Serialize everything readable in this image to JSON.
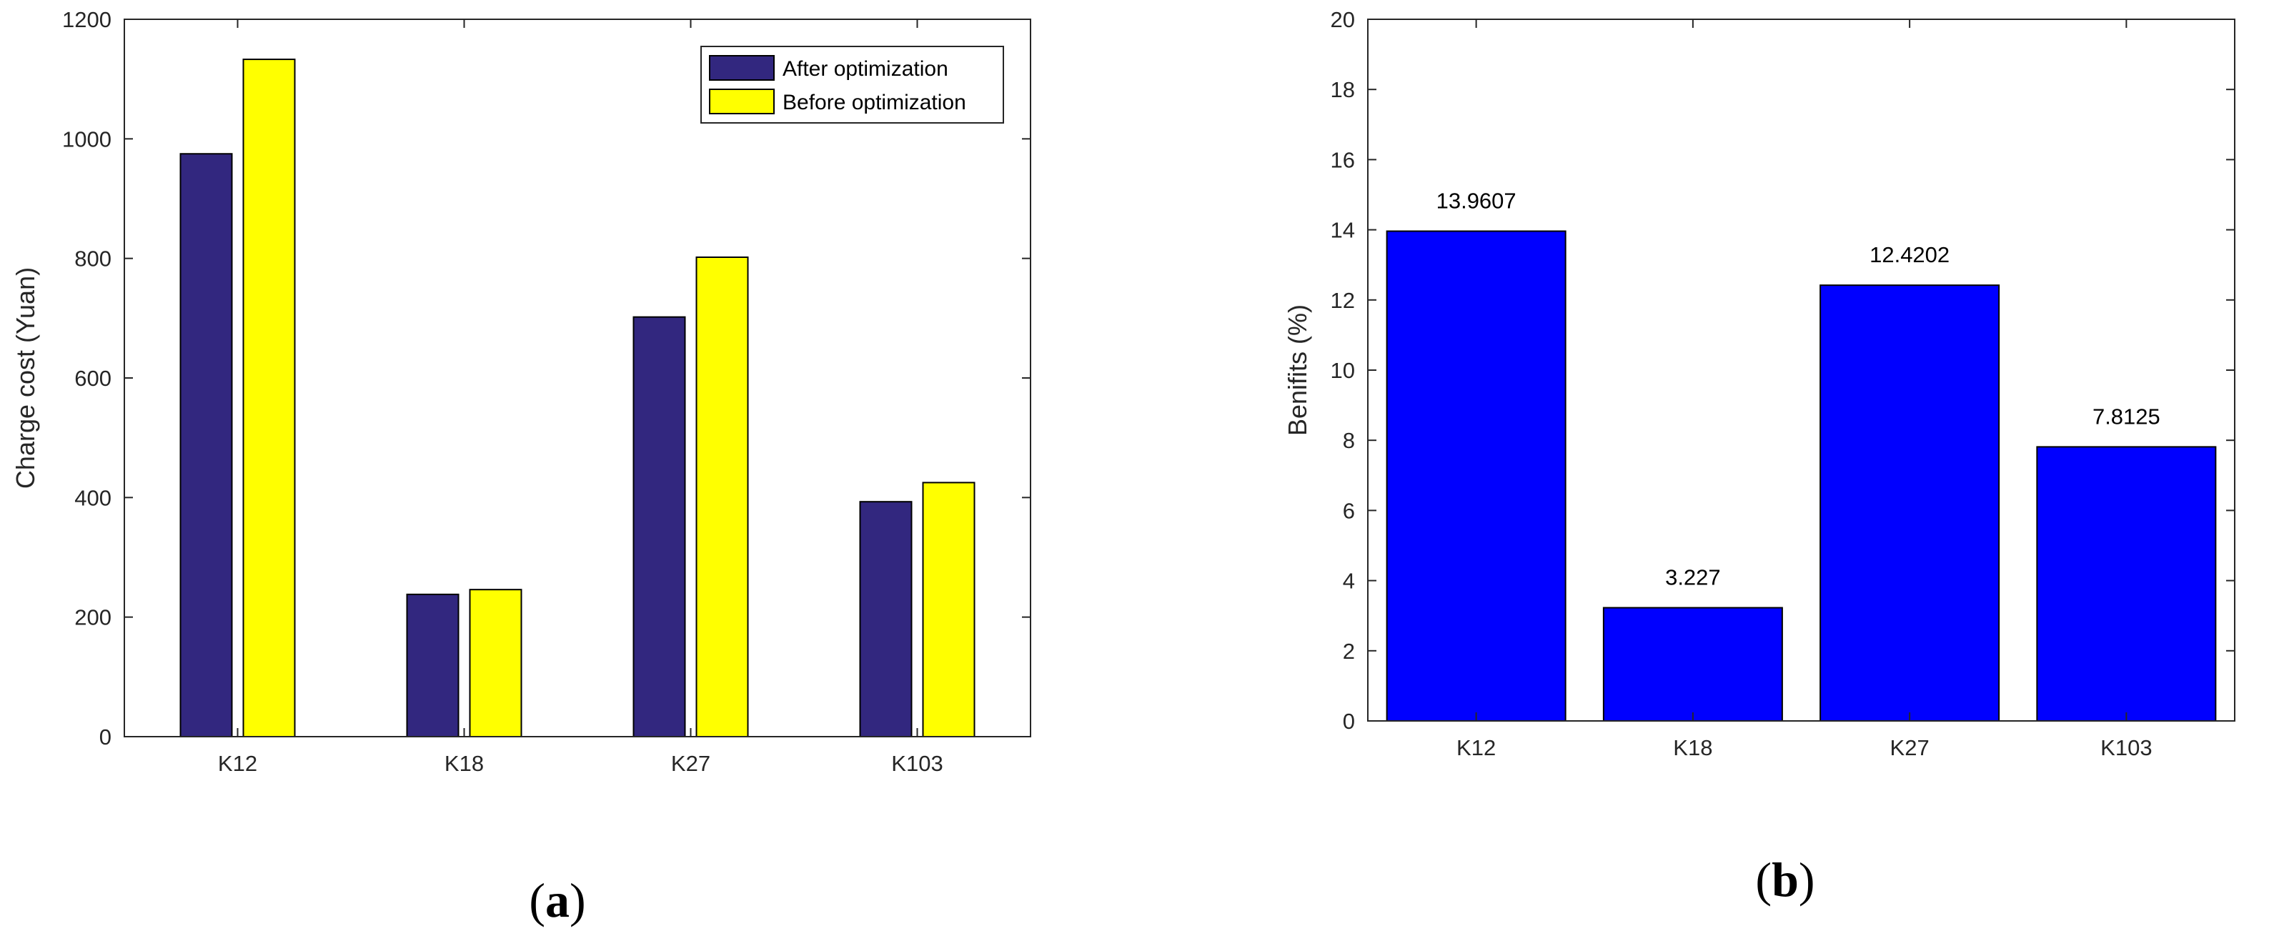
{
  "chart_data": [
    {
      "panel": "a",
      "type": "bar",
      "categories": [
        "K12",
        "K18",
        "K27",
        "K103"
      ],
      "series": [
        {
          "name": "After optimization",
          "values": [
            975,
            238,
            702,
            393
          ],
          "color": "#32277F"
        },
        {
          "name": "Before optimization",
          "values": [
            1133,
            246,
            802,
            425
          ],
          "color": "#FFFF00"
        }
      ],
      "ylabel": "Charge cost (Yuan)",
      "xlabel": "",
      "ylim": [
        0,
        1200
      ],
      "yticks": [
        0,
        200,
        400,
        600,
        800,
        1000,
        1200
      ],
      "legend": "top-right",
      "grid": false
    },
    {
      "panel": "b",
      "type": "bar",
      "categories": [
        "K12",
        "K18",
        "K27",
        "K103"
      ],
      "values": [
        13.9607,
        3.227,
        12.4202,
        7.8125
      ],
      "data_labels": [
        "13.9607",
        "3.227",
        "12.4202",
        "7.8125"
      ],
      "color": "#0000FF",
      "ylabel": "Benifits (%)",
      "xlabel": "",
      "ylim": [
        0,
        20
      ],
      "yticks": [
        0,
        2,
        4,
        6,
        8,
        10,
        12,
        14,
        16,
        18,
        20
      ],
      "grid": false
    }
  ],
  "captions": {
    "a": "a",
    "b": "b"
  }
}
